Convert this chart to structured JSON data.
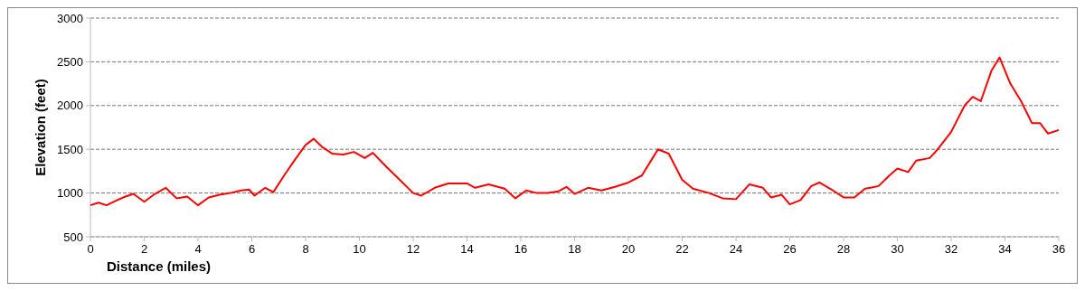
{
  "chart_data": {
    "type": "line",
    "xlabel": "Distance (miles)",
    "ylabel": "Elevation (feet)",
    "x": [
      0,
      0.3,
      0.6,
      1,
      1.3,
      1.6,
      2,
      2.4,
      2.8,
      3.2,
      3.6,
      4,
      4.4,
      4.8,
      5.2,
      5.6,
      5.9,
      6.1,
      6.5,
      6.8,
      7.2,
      7.6,
      8,
      8.3,
      8.6,
      9,
      9.4,
      9.8,
      10.2,
      10.5,
      11,
      11.5,
      12,
      12.3,
      12.8,
      13.3,
      14,
      14.3,
      14.8,
      15.4,
      15.8,
      16.2,
      16.6,
      17,
      17.4,
      17.7,
      18,
      18.5,
      19,
      19.5,
      20,
      20.5,
      20.9,
      21.1,
      21.5,
      22,
      22.4,
      23,
      23.5,
      24,
      24.5,
      25,
      25.3,
      25.7,
      26,
      26.4,
      26.8,
      27.1,
      27.5,
      28,
      28.4,
      28.8,
      29,
      29.3,
      29.7,
      30,
      30.4,
      30.7,
      31.2,
      31.5,
      32,
      32.5,
      32.8,
      33.1,
      33.5,
      33.8,
      34.2,
      34.6,
      35,
      35.3,
      35.6,
      36
    ],
    "series": [
      {
        "color": "#ff0000",
        "values": [
          860,
          890,
          860,
          920,
          960,
          990,
          900,
          990,
          1060,
          940,
          960,
          860,
          950,
          980,
          1000,
          1030,
          1040,
          970,
          1060,
          1010,
          1200,
          1380,
          1550,
          1620,
          1530,
          1450,
          1440,
          1470,
          1400,
          1460,
          1300,
          1150,
          1000,
          970,
          1060,
          1110,
          1110,
          1060,
          1100,
          1050,
          940,
          1030,
          1000,
          1000,
          1020,
          1070,
          990,
          1060,
          1030,
          1070,
          1120,
          1200,
          1400,
          1500,
          1450,
          1150,
          1050,
          1000,
          940,
          930,
          1100,
          1060,
          950,
          980,
          870,
          920,
          1080,
          1120,
          1050,
          950,
          950,
          1050,
          1060,
          1080,
          1200,
          1280,
          1240,
          1370,
          1400,
          1500,
          1700,
          2000,
          2100,
          2050,
          2400,
          2550,
          2250,
          2050,
          1800,
          1800,
          1680,
          1720
        ]
      }
    ],
    "xlim": [
      0,
      36
    ],
    "xticks": [
      0,
      2,
      4,
      6,
      8,
      10,
      12,
      14,
      16,
      18,
      20,
      22,
      24,
      26,
      28,
      30,
      32,
      34,
      36
    ],
    "ylim": [
      500,
      3000
    ],
    "yticks": [
      500,
      1000,
      1500,
      2000,
      2500,
      3000
    ],
    "grid": "y",
    "line_style": "solid"
  }
}
